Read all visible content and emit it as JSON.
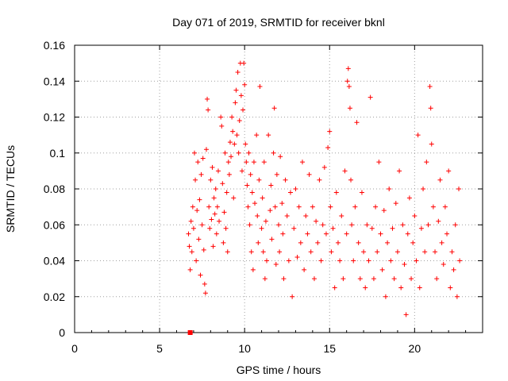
{
  "chart_data": {
    "type": "scatter",
    "title": "Day 071 of 2019, SRMTID for receiver bknl",
    "xlabel": "GPS time / hours",
    "ylabel": "SRMTID / TECUs",
    "xlim": [
      0,
      24
    ],
    "ylim": [
      0,
      0.16
    ],
    "xticks": [
      0,
      5,
      10,
      15,
      20
    ],
    "yticks": [
      0,
      0.02,
      0.04,
      0.06,
      0.08,
      0.1,
      0.12,
      0.14,
      0.16
    ],
    "xtick_labels": [
      "0",
      "5",
      "10",
      "15",
      "20"
    ],
    "ytick_labels": [
      "0",
      "0.02",
      "0.04",
      "0.06",
      "0.08",
      "0.1",
      "0.12",
      "0.14",
      "0.16"
    ],
    "grid": true,
    "marker": "plus",
    "color": "#ff0000",
    "series": [
      {
        "points": [
          [
            6.7,
            0.055
          ],
          [
            6.75,
            0.048
          ],
          [
            6.8,
            0.035
          ],
          [
            6.85,
            0.062
          ],
          [
            6.9,
            0.045
          ],
          [
            6.95,
            0.07
          ],
          [
            7.0,
            0.058
          ],
          [
            7.05,
            0.1
          ],
          [
            7.1,
            0.085
          ],
          [
            7.15,
            0.04
          ],
          [
            7.2,
            0.068
          ],
          [
            7.25,
            0.095
          ],
          [
            7.3,
            0.052
          ],
          [
            7.35,
            0.074
          ],
          [
            7.4,
            0.032
          ],
          [
            7.45,
            0.088
          ],
          [
            7.5,
            0.06
          ],
          [
            7.55,
            0.097
          ],
          [
            7.6,
            0.046
          ],
          [
            7.65,
            0.027
          ],
          [
            7.7,
            0.022
          ],
          [
            7.75,
            0.102
          ],
          [
            7.8,
            0.13
          ],
          [
            7.85,
            0.124
          ],
          [
            7.9,
            0.07
          ],
          [
            7.95,
            0.058
          ],
          [
            8.0,
            0.085
          ],
          [
            8.05,
            0.063
          ],
          [
            8.1,
            0.092
          ],
          [
            8.15,
            0.048
          ],
          [
            8.2,
            0.075
          ],
          [
            8.25,
            0.066
          ],
          [
            8.3,
            0.08
          ],
          [
            8.35,
            0.055
          ],
          [
            8.4,
            0.07
          ],
          [
            8.45,
            0.09
          ],
          [
            8.5,
            0.062
          ],
          [
            8.6,
            0.12
          ],
          [
            8.65,
            0.115
          ],
          [
            8.7,
            0.083
          ],
          [
            8.75,
            0.05
          ],
          [
            8.8,
            0.067
          ],
          [
            8.85,
            0.1
          ],
          [
            8.9,
            0.058
          ],
          [
            8.95,
            0.078
          ],
          [
            9.0,
            0.045
          ],
          [
            9.05,
            0.095
          ],
          [
            9.1,
            0.088
          ],
          [
            9.15,
            0.106
          ],
          [
            9.2,
            0.098
          ],
          [
            9.25,
            0.12
          ],
          [
            9.3,
            0.112
          ],
          [
            9.35,
            0.075
          ],
          [
            9.4,
            0.105
          ],
          [
            9.45,
            0.128
          ],
          [
            9.5,
            0.135
          ],
          [
            9.55,
            0.11
          ],
          [
            9.6,
            0.145
          ],
          [
            9.65,
            0.1
          ],
          [
            9.7,
            0.118
          ],
          [
            9.75,
            0.15
          ],
          [
            9.8,
            0.132
          ],
          [
            9.85,
            0.09
          ],
          [
            9.9,
            0.124
          ],
          [
            9.95,
            0.15
          ],
          [
            10.0,
            0.138
          ],
          [
            10.05,
            0.105
          ],
          [
            10.1,
            0.095
          ],
          [
            10.15,
            0.082
          ],
          [
            10.2,
            0.07
          ],
          [
            10.25,
            0.1
          ],
          [
            10.3,
            0.06
          ],
          [
            10.35,
            0.088
          ],
          [
            10.4,
            0.045
          ],
          [
            10.45,
            0.078
          ],
          [
            10.5,
            0.035
          ],
          [
            10.55,
            0.095
          ],
          [
            10.6,
            0.072
          ],
          [
            10.7,
            0.11
          ],
          [
            10.75,
            0.065
          ],
          [
            10.8,
            0.05
          ],
          [
            10.85,
            0.085
          ],
          [
            10.9,
            0.137
          ],
          [
            11.0,
            0.058
          ],
          [
            11.05,
            0.075
          ],
          [
            11.1,
            0.045
          ],
          [
            11.15,
            0.095
          ],
          [
            11.2,
            0.03
          ],
          [
            11.25,
            0.062
          ],
          [
            11.3,
            0.04
          ],
          [
            11.4,
            0.11
          ],
          [
            11.5,
            0.068
          ],
          [
            11.55,
            0.082
          ],
          [
            11.6,
            0.052
          ],
          [
            11.7,
            0.1
          ],
          [
            11.75,
            0.125
          ],
          [
            11.8,
            0.07
          ],
          [
            11.85,
            0.038
          ],
          [
            11.9,
            0.088
          ],
          [
            12.0,
            0.06
          ],
          [
            12.05,
            0.045
          ],
          [
            12.1,
            0.098
          ],
          [
            12.2,
            0.072
          ],
          [
            12.25,
            0.055
          ],
          [
            12.3,
            0.03
          ],
          [
            12.4,
            0.085
          ],
          [
            12.5,
            0.065
          ],
          [
            12.6,
            0.04
          ],
          [
            12.7,
            0.078
          ],
          [
            12.8,
            0.02
          ],
          [
            12.9,
            0.058
          ],
          [
            13.0,
            0.08
          ],
          [
            13.1,
            0.042
          ],
          [
            13.2,
            0.07
          ],
          [
            13.3,
            0.05
          ],
          [
            13.4,
            0.095
          ],
          [
            13.5,
            0.035
          ],
          [
            13.6,
            0.065
          ],
          [
            13.7,
            0.055
          ],
          [
            13.8,
            0.088
          ],
          [
            13.9,
            0.045
          ],
          [
            14.0,
            0.07
          ],
          [
            14.1,
            0.03
          ],
          [
            14.2,
            0.062
          ],
          [
            14.3,
            0.05
          ],
          [
            14.4,
            0.085
          ],
          [
            14.5,
            0.04
          ],
          [
            14.6,
            0.06
          ],
          [
            14.7,
            0.092
          ],
          [
            14.8,
            0.055
          ],
          [
            14.9,
            0.103
          ],
          [
            15.0,
            0.112
          ],
          [
            15.05,
            0.07
          ],
          [
            15.1,
            0.045
          ],
          [
            15.2,
            0.058
          ],
          [
            15.3,
            0.025
          ],
          [
            15.4,
            0.078
          ],
          [
            15.5,
            0.05
          ],
          [
            15.6,
            0.04
          ],
          [
            15.7,
            0.065
          ],
          [
            15.8,
            0.03
          ],
          [
            15.9,
            0.09
          ],
          [
            16.0,
            0.055
          ],
          [
            16.05,
            0.14
          ],
          [
            16.1,
            0.147
          ],
          [
            16.15,
            0.137
          ],
          [
            16.2,
            0.125
          ],
          [
            16.25,
            0.085
          ],
          [
            16.3,
            0.06
          ],
          [
            16.4,
            0.04
          ],
          [
            16.5,
            0.07
          ],
          [
            16.6,
            0.117
          ],
          [
            16.7,
            0.05
          ],
          [
            16.8,
            0.03
          ],
          [
            16.9,
            0.078
          ],
          [
            17.0,
            0.045
          ],
          [
            17.1,
            0.025
          ],
          [
            17.2,
            0.06
          ],
          [
            17.3,
            0.04
          ],
          [
            17.4,
            0.131
          ],
          [
            17.5,
            0.058
          ],
          [
            17.6,
            0.03
          ],
          [
            17.7,
            0.07
          ],
          [
            17.8,
            0.045
          ],
          [
            17.9,
            0.095
          ],
          [
            18.0,
            0.055
          ],
          [
            18.1,
            0.035
          ],
          [
            18.2,
            0.068
          ],
          [
            18.3,
            0.02
          ],
          [
            18.4,
            0.05
          ],
          [
            18.5,
            0.08
          ],
          [
            18.6,
            0.04
          ],
          [
            18.7,
            0.058
          ],
          [
            18.8,
            0.03
          ],
          [
            18.9,
            0.072
          ],
          [
            19.0,
            0.045
          ],
          [
            19.1,
            0.09
          ],
          [
            19.2,
            0.025
          ],
          [
            19.3,
            0.06
          ],
          [
            19.4,
            0.038
          ],
          [
            19.5,
            0.01
          ],
          [
            19.6,
            0.055
          ],
          [
            19.7,
            0.075
          ],
          [
            19.8,
            0.03
          ],
          [
            19.9,
            0.05
          ],
          [
            20.0,
            0.065
          ],
          [
            20.1,
            0.04
          ],
          [
            20.2,
            0.11
          ],
          [
            20.3,
            0.025
          ],
          [
            20.4,
            0.058
          ],
          [
            20.5,
            0.08
          ],
          [
            20.6,
            0.045
          ],
          [
            20.7,
            0.095
          ],
          [
            20.8,
            0.06
          ],
          [
            20.9,
            0.137
          ],
          [
            20.95,
            0.125
          ],
          [
            21.0,
            0.105
          ],
          [
            21.1,
            0.07
          ],
          [
            21.2,
            0.045
          ],
          [
            21.3,
            0.03
          ],
          [
            21.4,
            0.062
          ],
          [
            21.5,
            0.085
          ],
          [
            21.6,
            0.05
          ],
          [
            21.7,
            0.038
          ],
          [
            21.8,
            0.07
          ],
          [
            21.9,
            0.055
          ],
          [
            22.0,
            0.09
          ],
          [
            22.1,
            0.025
          ],
          [
            22.2,
            0.045
          ],
          [
            22.3,
            0.035
          ],
          [
            22.4,
            0.06
          ],
          [
            22.5,
            0.02
          ],
          [
            22.6,
            0.08
          ],
          [
            22.65,
            0.04
          ]
        ]
      },
      {
        "points": [
          [
            6.8,
            0.0
          ]
        ]
      }
    ]
  }
}
